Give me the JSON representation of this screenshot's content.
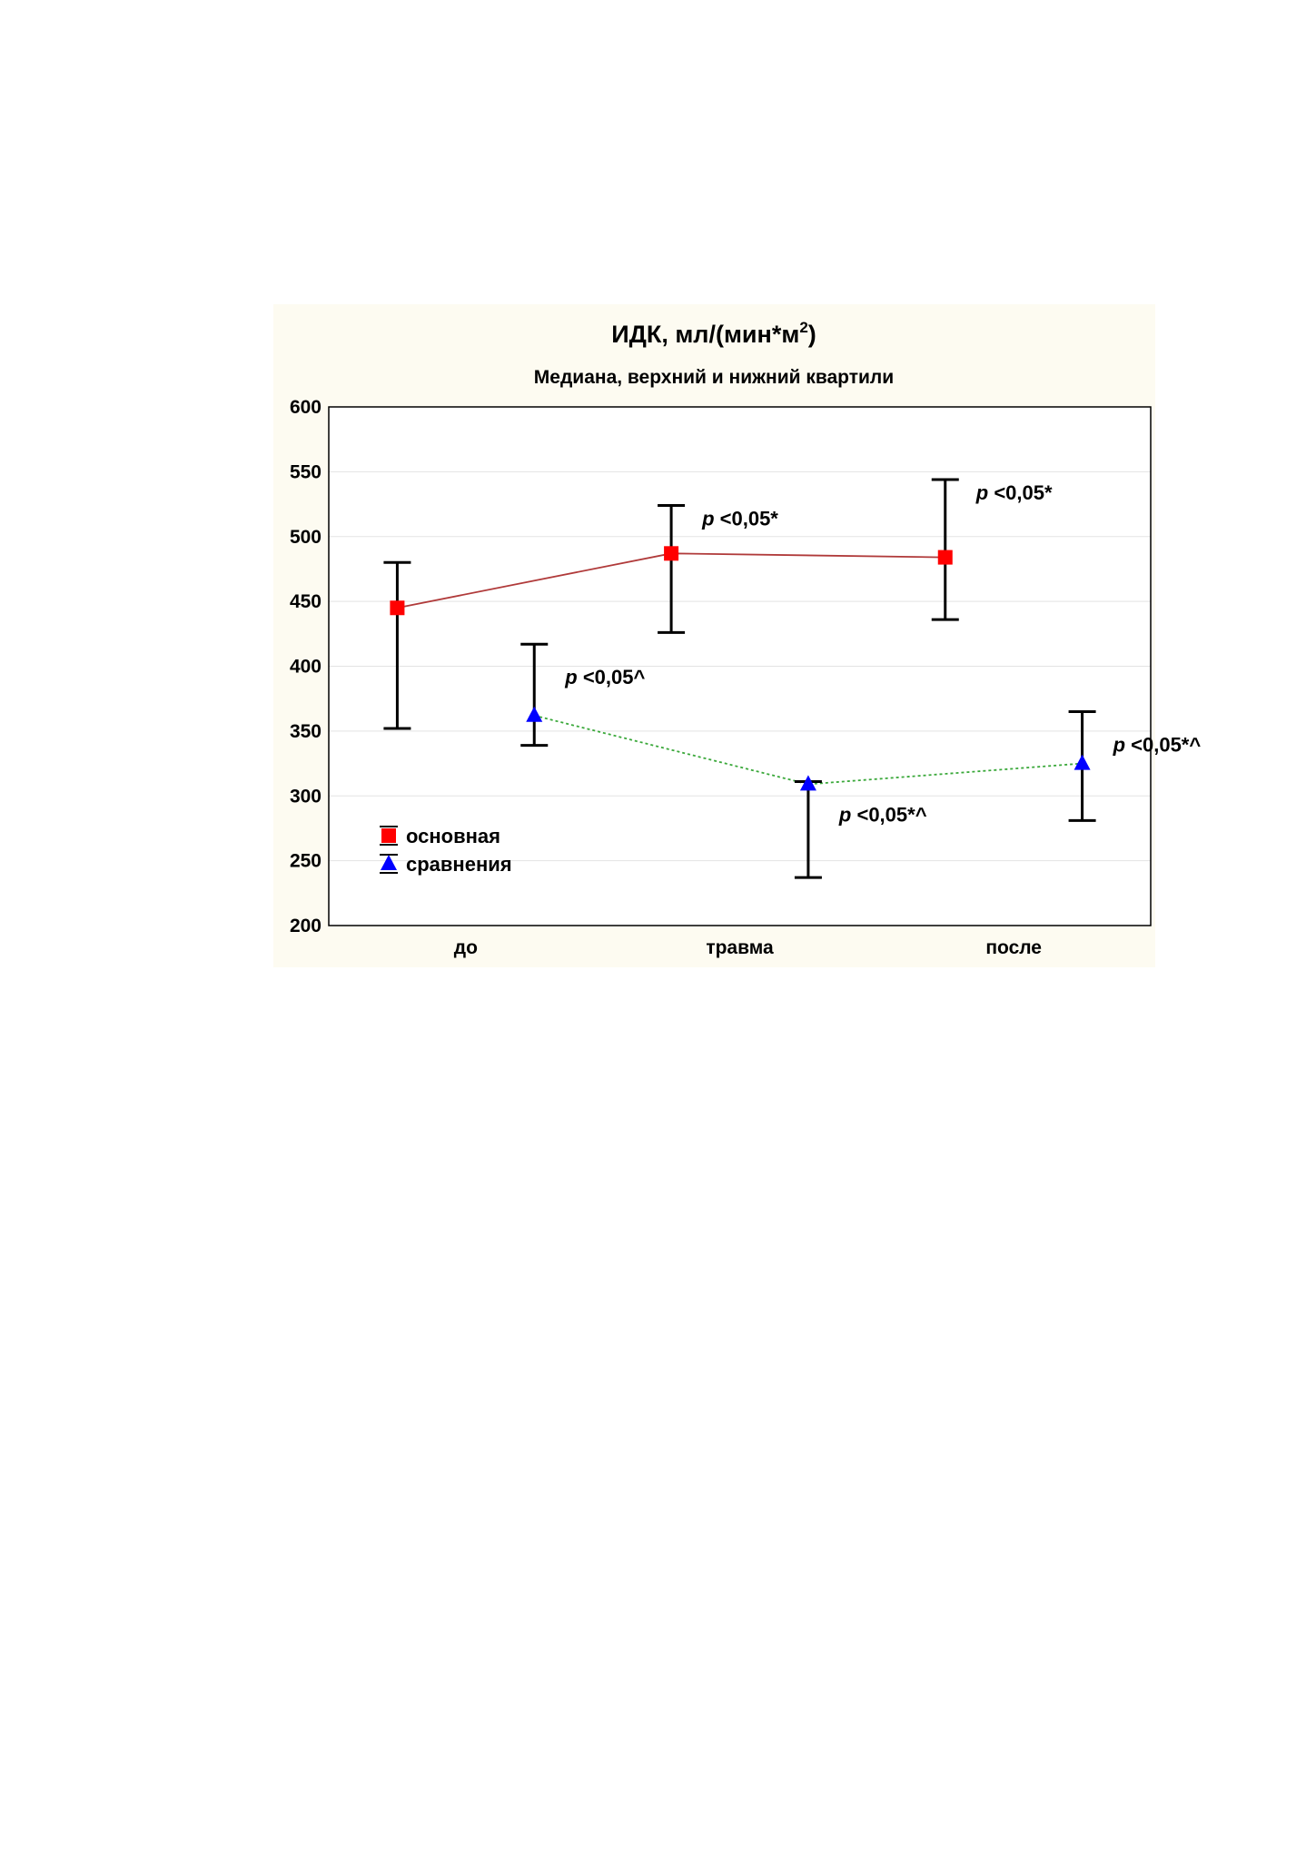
{
  "colors": {
    "panel_bg": "#fdfbf1",
    "plot_bg": "#ffffff",
    "grid": "#e3e3e3",
    "series_main_marker": "#ff0000",
    "series_main_line": "#b03a3a",
    "series_compare_marker": "#0000ff",
    "series_compare_line": "#3aa83a",
    "error_bar": "#000000"
  },
  "chart_data": {
    "type": "line",
    "title": "ИДК, мл/(мин*м",
    "title_superscript": "2",
    "title_end": ")",
    "subtitle": "Медиана, верхний и нижний квартили",
    "xlabel": "",
    "ylabel": "",
    "categories": [
      "до",
      "травма",
      "после"
    ],
    "ylim": [
      200,
      600
    ],
    "yticks": [
      "600",
      "550",
      "500",
      "450",
      "400",
      "350",
      "300",
      "250",
      "200"
    ],
    "grid": true,
    "legend_position": "bottom-left",
    "series": [
      {
        "name": "основная",
        "marker": "square",
        "line_style": "solid",
        "values": [
          445,
          487,
          484
        ],
        "upper_quartile": [
          480,
          524,
          544
        ],
        "lower_quartile": [
          352,
          426,
          436
        ],
        "annotations": [
          "",
          "p <0,05*",
          "p <0,05*"
        ]
      },
      {
        "name": "сравнения",
        "marker": "triangle",
        "line_style": "dotted",
        "values": [
          362,
          309,
          325
        ],
        "upper_quartile": [
          417,
          311,
          365
        ],
        "lower_quartile": [
          339,
          237,
          281
        ],
        "annotations": [
          "p <0,05^",
          "p <0,05*^",
          "p <0,05*^"
        ]
      }
    ]
  }
}
